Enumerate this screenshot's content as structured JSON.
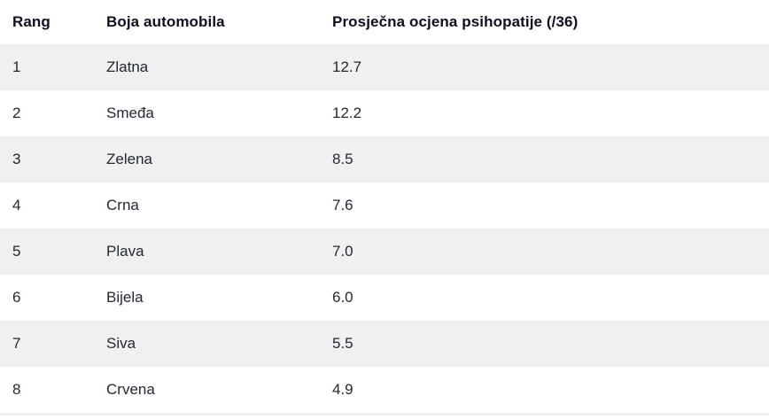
{
  "table": {
    "columns": [
      {
        "label": "Rang"
      },
      {
        "label": "Boja automobila"
      },
      {
        "label": "Prosječna ocjena psihopatije (/36)"
      }
    ],
    "rows": [
      {
        "rank": "1",
        "color": "Zlatna",
        "score": "12.7"
      },
      {
        "rank": "2",
        "color": "Smeđa",
        "score": "12.2"
      },
      {
        "rank": "3",
        "color": "Zelena",
        "score": "8.5"
      },
      {
        "rank": "4",
        "color": "Crna",
        "score": "7.6"
      },
      {
        "rank": "5",
        "color": "Plava",
        "score": "7.0"
      },
      {
        "rank": "6",
        "color": "Bijela",
        "score": "6.0"
      },
      {
        "rank": "7",
        "color": "Siva",
        "score": "5.5"
      },
      {
        "rank": "8",
        "color": "Crvena",
        "score": "4.9"
      }
    ]
  },
  "colors": {
    "stripe_background": "#f0f0f0",
    "row_background": "#ffffff",
    "header_text": "#0d1020",
    "body_text": "#232836"
  },
  "chart_data": {
    "type": "table",
    "title": "",
    "columns": [
      "Rang",
      "Boja automobila",
      "Prosječna ocjena psihopatije (/36)"
    ],
    "rows": [
      [
        1,
        "Zlatna",
        12.7
      ],
      [
        2,
        "Smeđa",
        12.2
      ],
      [
        3,
        "Zelena",
        8.5
      ],
      [
        4,
        "Crna",
        7.6
      ],
      [
        5,
        "Plava",
        7.0
      ],
      [
        6,
        "Bijela",
        6.0
      ],
      [
        7,
        "Siva",
        5.5
      ],
      [
        8,
        "Crvena",
        4.9
      ]
    ],
    "layout_hints": {
      "striped_rows": true,
      "stripe_starts_on_first_data_row": true,
      "header_background": "#ffffff",
      "stripe_color": "#f0f0f0"
    }
  }
}
